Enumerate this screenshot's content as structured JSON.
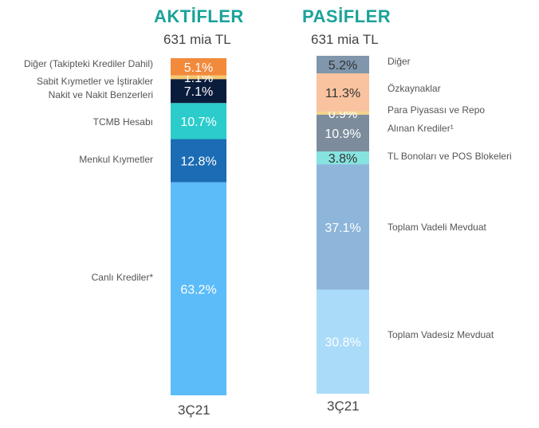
{
  "assets": {
    "title": "AKTİFLER",
    "subtitle": "631 mia TL",
    "period": "3Ç21",
    "segments": [
      {
        "label": "Canlı Krediler*",
        "value": 63.2,
        "text": "63.2%",
        "color": "#5bbcf9",
        "label_color": "#ffffff"
      },
      {
        "label": "Menkul Kıymetler",
        "value": 12.8,
        "text": "12.8%",
        "color": "#1b6cb4",
        "label_color": "#ffffff"
      },
      {
        "label": "TCMB Hesabı",
        "value": 10.7,
        "text": "10.7%",
        "color": "#2ccccc",
        "label_color": "#ffffff"
      },
      {
        "label": "Nakit ve Nakit Benzerleri",
        "value": 7.1,
        "text": "7.1%",
        "color": "#0a1c3c",
        "label_color": "#ffffff"
      },
      {
        "label": "Sabit Kıymetler ve İştirakler",
        "value": 1.1,
        "text": "1.1%",
        "color": "#f6c870",
        "label_color": "#ffffff"
      },
      {
        "label": "Diğer (Takipteki Krediler Dahil)",
        "value": 5.1,
        "text": "5.1%",
        "color": "#f28a3c",
        "label_color": "#ffffff"
      }
    ]
  },
  "liabilities": {
    "title": "PASİFLER",
    "subtitle": "631 mia TL",
    "period": "3Ç21",
    "segments": [
      {
        "label": "Toplam Vadesiz Mevduat",
        "value": 30.8,
        "text": "30.8%",
        "color": "#aadbf9",
        "label_color": "#ffffff"
      },
      {
        "label": "Toplam Vadeli Mevduat",
        "value": 37.1,
        "text": "37.1%",
        "color": "#8db6da",
        "label_color": "#ffffff"
      },
      {
        "label": "TL Bonoları ve POS Blokeleri",
        "value": 3.8,
        "text": "3.8%",
        "color": "#86e3df",
        "label_color": "#333333"
      },
      {
        "label": "Alınan Krediler¹",
        "value": 10.9,
        "text": "10.9%",
        "color": "#7d8c9c",
        "label_color": "#ffffff"
      },
      {
        "label": "Para Piyasası ve Repo",
        "value": 0.9,
        "text": "0.9%",
        "color": "#f6d38a",
        "label_color": "#ffffff"
      },
      {
        "label": "Özkaynaklar",
        "value": 11.3,
        "text": "11.3%",
        "color": "#f8c39e",
        "label_color": "#333333"
      },
      {
        "label": "Diğer",
        "value": 5.2,
        "text": "5.2%",
        "color": "#8096ac",
        "label_color": "#333333"
      }
    ]
  },
  "chart_data": {
    "type": "bar",
    "stacked": true,
    "categories": [
      "AKTİFLER",
      "PASİFLER"
    ],
    "series": [
      {
        "name": "Canlı Krediler*",
        "values": [
          63.2,
          null
        ]
      },
      {
        "name": "Menkul Kıymetler",
        "values": [
          12.8,
          null
        ]
      },
      {
        "name": "TCMB Hesabı",
        "values": [
          10.7,
          null
        ]
      },
      {
        "name": "Nakit ve Nakit Benzerleri",
        "values": [
          7.1,
          null
        ]
      },
      {
        "name": "Sabit Kıymetler ve İştirakler",
        "values": [
          1.1,
          null
        ]
      },
      {
        "name": "Diğer (Takipteki Krediler Dahil)",
        "values": [
          5.1,
          null
        ]
      },
      {
        "name": "Toplam Vadesiz Mevduat",
        "values": [
          null,
          30.8
        ]
      },
      {
        "name": "Toplam Vadeli Mevduat",
        "values": [
          null,
          37.1
        ]
      },
      {
        "name": "TL Bonoları ve POS Blokeleri",
        "values": [
          null,
          3.8
        ]
      },
      {
        "name": "Alınan Krediler¹",
        "values": [
          null,
          10.9
        ]
      },
      {
        "name": "Para Piyasası ve Repo",
        "values": [
          null,
          0.9
        ]
      },
      {
        "name": "Özkaynaklar",
        "values": [
          null,
          11.3
        ]
      },
      {
        "name": "Diğer",
        "values": [
          null,
          5.2
        ]
      }
    ],
    "xlabel": "3Ç21",
    "ylim": [
      0,
      100
    ],
    "grid": false,
    "legend": "none"
  }
}
